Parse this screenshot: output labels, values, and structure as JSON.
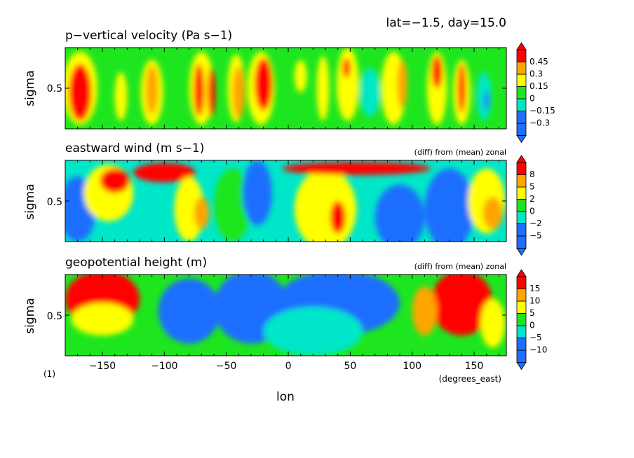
{
  "header": {
    "label": "lat=−1.5, day=15.0"
  },
  "figure_number": "(1)",
  "colors": {
    "blue": "#1e6eff",
    "cyan": "#00e6c8",
    "green": "#1ee61e",
    "yellow": "#ffff00",
    "orange": "#ffa500",
    "red": "#ff0000"
  },
  "chart_data": [
    {
      "type": "heatmap",
      "title": "p−vertical velocity (Pa s−1)",
      "subtitle": "",
      "ylabel": "sigma",
      "yticks": [
        "0.5"
      ],
      "xlim": [
        -180,
        176
      ],
      "colorbar": {
        "levels": [
          -0.3,
          -0.15,
          0,
          0.15,
          0.3,
          0.45
        ],
        "labels": [
          "−0.3",
          "−0.15",
          "0",
          "0.15",
          "0.3",
          "0.45"
        ]
      },
      "background_class": 2,
      "blobs": [
        {
          "lon": -168,
          "sigma": 0.5,
          "class": 3,
          "rx": 14,
          "ry": 0.45
        },
        {
          "lon": -168,
          "sigma": 0.45,
          "class": 5,
          "rx": 9,
          "ry": 0.35
        },
        {
          "lon": -135,
          "sigma": 0.4,
          "class": 3,
          "rx": 5,
          "ry": 0.3
        },
        {
          "lon": -110,
          "sigma": 0.45,
          "class": 3,
          "rx": 9,
          "ry": 0.4
        },
        {
          "lon": -110,
          "sigma": 0.48,
          "class": 4,
          "rx": 5,
          "ry": 0.3
        },
        {
          "lon": -70,
          "sigma": 0.5,
          "class": 3,
          "rx": 10,
          "ry": 0.45
        },
        {
          "lon": -72,
          "sigma": 0.48,
          "class": 5,
          "rx": 4,
          "ry": 0.32
        },
        {
          "lon": -62,
          "sigma": 0.45,
          "class": 5,
          "rx": 3,
          "ry": 0.3
        },
        {
          "lon": -42,
          "sigma": 0.5,
          "class": 3,
          "rx": 7,
          "ry": 0.42
        },
        {
          "lon": -40,
          "sigma": 0.45,
          "class": 4,
          "rx": 5,
          "ry": 0.32
        },
        {
          "lon": -22,
          "sigma": 0.5,
          "class": 3,
          "rx": 11,
          "ry": 0.45
        },
        {
          "lon": -20,
          "sigma": 0.55,
          "class": 5,
          "rx": 7,
          "ry": 0.32
        },
        {
          "lon": 10,
          "sigma": 0.65,
          "class": 3,
          "rx": 5,
          "ry": 0.2
        },
        {
          "lon": 28,
          "sigma": 0.5,
          "class": 3,
          "rx": 5,
          "ry": 0.4
        },
        {
          "lon": 48,
          "sigma": 0.55,
          "class": 3,
          "rx": 9,
          "ry": 0.45
        },
        {
          "lon": 47,
          "sigma": 0.75,
          "class": 5,
          "rx": 3,
          "ry": 0.12
        },
        {
          "lon": 66,
          "sigma": 0.45,
          "class": 1,
          "rx": 8,
          "ry": 0.3
        },
        {
          "lon": 85,
          "sigma": 0.5,
          "class": 3,
          "rx": 10,
          "ry": 0.45
        },
        {
          "lon": 92,
          "sigma": 0.55,
          "class": 4,
          "rx": 4,
          "ry": 0.3
        },
        {
          "lon": 120,
          "sigma": 0.5,
          "class": 3,
          "rx": 8,
          "ry": 0.45
        },
        {
          "lon": 120,
          "sigma": 0.7,
          "class": 5,
          "rx": 4,
          "ry": 0.2
        },
        {
          "lon": 140,
          "sigma": 0.45,
          "class": 3,
          "rx": 7,
          "ry": 0.4
        },
        {
          "lon": 140,
          "sigma": 0.5,
          "class": 5,
          "rx": 3,
          "ry": 0.3
        },
        {
          "lon": 158,
          "sigma": 0.4,
          "class": 1,
          "rx": 6,
          "ry": 0.3
        },
        {
          "lon": 160,
          "sigma": 0.35,
          "class": 0,
          "rx": 2,
          "ry": 0.12
        }
      ]
    },
    {
      "type": "heatmap",
      "title": "eastward wind (m s−1)",
      "subtitle": "(diff) from (mean) zonal",
      "ylabel": "sigma",
      "yticks": [
        "0.5"
      ],
      "xlim": [
        -180,
        176
      ],
      "colorbar": {
        "levels": [
          -5,
          -2,
          0,
          2,
          5,
          8
        ],
        "labels": [
          "−5",
          "−2",
          "0",
          "2",
          "5",
          "8"
        ]
      },
      "background_class": 1,
      "blobs": [
        {
          "lon": -170,
          "sigma": 0.4,
          "class": 0,
          "rx": 15,
          "ry": 0.4
        },
        {
          "lon": -145,
          "sigma": 0.6,
          "class": 3,
          "rx": 20,
          "ry": 0.35
        },
        {
          "lon": -140,
          "sigma": 0.75,
          "class": 5,
          "rx": 12,
          "ry": 0.15
        },
        {
          "lon": -100,
          "sigma": 0.85,
          "class": 5,
          "rx": 25,
          "ry": 0.12
        },
        {
          "lon": -80,
          "sigma": 0.4,
          "class": 3,
          "rx": 12,
          "ry": 0.4
        },
        {
          "lon": -70,
          "sigma": 0.35,
          "class": 4,
          "rx": 6,
          "ry": 0.2
        },
        {
          "lon": -45,
          "sigma": 0.45,
          "class": 2,
          "rx": 15,
          "ry": 0.45
        },
        {
          "lon": -25,
          "sigma": 0.6,
          "class": 0,
          "rx": 12,
          "ry": 0.4
        },
        {
          "lon": 30,
          "sigma": 0.4,
          "class": 3,
          "rx": 25,
          "ry": 0.5
        },
        {
          "lon": 40,
          "sigma": 0.3,
          "class": 5,
          "rx": 6,
          "ry": 0.2
        },
        {
          "lon": 55,
          "sigma": 0.9,
          "class": 5,
          "rx": 60,
          "ry": 0.08
        },
        {
          "lon": 90,
          "sigma": 0.3,
          "class": 0,
          "rx": 20,
          "ry": 0.4
        },
        {
          "lon": 130,
          "sigma": 0.4,
          "class": 0,
          "rx": 20,
          "ry": 0.5
        },
        {
          "lon": 160,
          "sigma": 0.5,
          "class": 3,
          "rx": 15,
          "ry": 0.4
        },
        {
          "lon": 165,
          "sigma": 0.35,
          "class": 4,
          "rx": 8,
          "ry": 0.2
        }
      ]
    },
    {
      "type": "heatmap",
      "title": "geopotential height (m)",
      "subtitle": "(diff) from (mean) zonal",
      "ylabel": "sigma",
      "yticks": [
        "0.5"
      ],
      "xlim": [
        -180,
        176
      ],
      "colorbar": {
        "levels": [
          -10,
          -5,
          0,
          5,
          10,
          15
        ],
        "labels": [
          "−10",
          "−5",
          "0",
          "5",
          "10",
          "15"
        ]
      },
      "background_class": 2,
      "blobs": [
        {
          "lon": -150,
          "sigma": 0.7,
          "class": 5,
          "rx": 30,
          "ry": 0.35
        },
        {
          "lon": -150,
          "sigma": 0.45,
          "class": 3,
          "rx": 25,
          "ry": 0.2
        },
        {
          "lon": -80,
          "sigma": 0.55,
          "class": 0,
          "rx": 25,
          "ry": 0.4
        },
        {
          "lon": -30,
          "sigma": 0.6,
          "class": 0,
          "rx": 30,
          "ry": 0.45
        },
        {
          "lon": 40,
          "sigma": 0.65,
          "class": 0,
          "rx": 50,
          "ry": 0.4
        },
        {
          "lon": 20,
          "sigma": 0.3,
          "class": 1,
          "rx": 40,
          "ry": 0.3
        },
        {
          "lon": 140,
          "sigma": 0.65,
          "class": 5,
          "rx": 25,
          "ry": 0.4
        },
        {
          "lon": 110,
          "sigma": 0.55,
          "class": 4,
          "rx": 10,
          "ry": 0.3
        },
        {
          "lon": 165,
          "sigma": 0.4,
          "class": 3,
          "rx": 10,
          "ry": 0.3
        }
      ]
    }
  ],
  "xaxis": {
    "label": "lon",
    "units": "(degrees_east)",
    "ticks": [
      -150,
      -100,
      -50,
      0,
      50,
      100,
      150
    ],
    "tick_labels": [
      "−150",
      "−100",
      "−50",
      "0",
      "50",
      "100",
      "150"
    ]
  }
}
